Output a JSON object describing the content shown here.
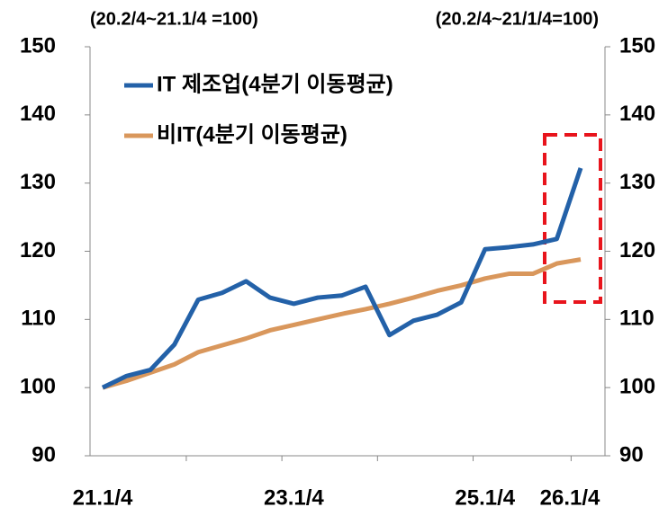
{
  "chart_data": {
    "type": "line",
    "y_label": "(20.2/4~21.1/4 =100)",
    "y2_label": "(20.2/4~21/1/4=100)",
    "categories": [
      "21.1/4",
      null,
      null,
      null,
      null,
      null,
      null,
      null,
      "23.1/4",
      null,
      null,
      null,
      null,
      null,
      null,
      null,
      "25.1/4",
      null,
      null,
      null,
      "26.1/4"
    ],
    "series": [
      {
        "name": "IT 제조업(4분기 이동평균)",
        "color": "#2361a8",
        "values": [
          100,
          101.7,
          102.6,
          106.3,
          112.9,
          113.9,
          115.6,
          113.2,
          112.3,
          113.2,
          113.5,
          114.8,
          107.7,
          109.8,
          110.7,
          112.5,
          120.3,
          120.6,
          121,
          121.8,
          132.2
        ]
      },
      {
        "name": "비IT(4분기 이동평균)",
        "color": "#d9975c",
        "values": [
          100,
          101,
          102.2,
          103.4,
          105.2,
          106.2,
          107.2,
          108.4,
          109.2,
          110,
          110.8,
          111.5,
          112.3,
          113.2,
          114.2,
          115,
          116,
          116.7,
          116.7,
          118.2,
          118.8
        ]
      }
    ],
    "ylim": [
      90,
      150
    ],
    "yticks": [
      90,
      100,
      110,
      120,
      130,
      140,
      150
    ],
    "y2lim": [
      90,
      150
    ],
    "y2ticks": [
      90,
      100,
      110,
      120,
      130,
      140,
      150
    ],
    "grid": false
  }
}
